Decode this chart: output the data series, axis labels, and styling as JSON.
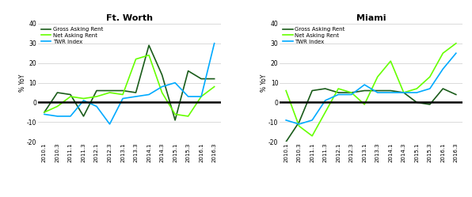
{
  "x_labels": [
    "2010.1",
    "2010.3",
    "2011.1",
    "2011.3",
    "2012.1",
    "2012.3",
    "2013.1",
    "2013.3",
    "2014.1",
    "2014.3",
    "2015.1",
    "2015.3",
    "2016.1",
    "2016.3"
  ],
  "fw_gross": [
    -5,
    5,
    4,
    -7,
    6,
    6,
    6,
    5,
    29,
    14,
    -9,
    16,
    12,
    12
  ],
  "fw_net": [
    -5,
    -2,
    3,
    2,
    3,
    5,
    4,
    22,
    24,
    5,
    -6,
    -7,
    3,
    8
  ],
  "fw_twr": [
    -6,
    -7,
    -7,
    1,
    -2,
    -11,
    2,
    3,
    4,
    8,
    10,
    3,
    3,
    30
  ],
  "mi_gross": [
    -20,
    -10,
    6,
    7,
    5,
    5,
    6,
    6,
    6,
    5,
    0,
    -1,
    7,
    4
  ],
  "mi_net": [
    6,
    -12,
    -17,
    -5,
    7,
    5,
    -1,
    13,
    21,
    5,
    7,
    13,
    25,
    30
  ],
  "mi_twr": [
    -9,
    -11,
    -9,
    1,
    4,
    4,
    9,
    5,
    5,
    5,
    5,
    7,
    17,
    25
  ],
  "color_gross": "#1a5c1a",
  "color_net": "#66ff00",
  "color_twr": "#00aaff",
  "ylim": [
    -20,
    40
  ],
  "yticks": [
    -20,
    -10,
    0,
    10,
    20,
    30,
    40
  ],
  "title_fw": "Ft. Worth",
  "title_mi": "Miami",
  "ylabel": "% YoY",
  "legend_labels": [
    "Gross Asking Rent",
    "Net Asking Rent",
    "TWR Index"
  ],
  "lw": 1.2
}
